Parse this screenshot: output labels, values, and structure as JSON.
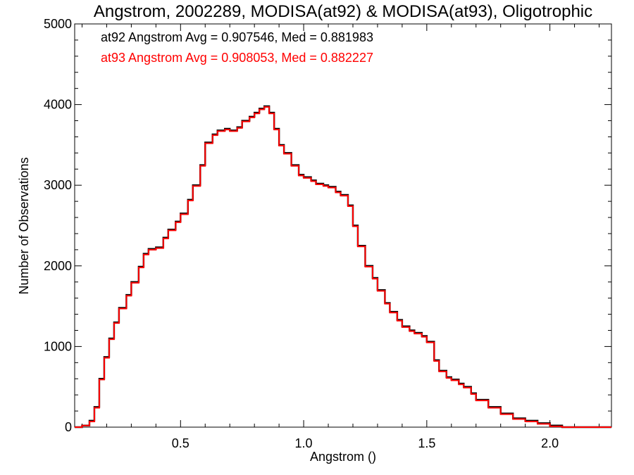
{
  "chart_data": {
    "type": "histogram-step",
    "title": "Angstrom, 2002289, MODISA(at92) & MODISA(at93), Oligotrophic",
    "xlabel": "Angstrom ()",
    "ylabel": "Number of Observations",
    "xlim": [
      0.07,
      2.25
    ],
    "ylim": [
      0,
      5000
    ],
    "x_ticks": [
      "0.5",
      "1.0",
      "1.5",
      "2.0"
    ],
    "x_tick_values": [
      0.5,
      1.0,
      1.5,
      2.0
    ],
    "y_ticks": [
      "0",
      "1000",
      "2000",
      "3000",
      "4000",
      "5000"
    ],
    "y_tick_values": [
      0,
      1000,
      2000,
      3000,
      4000,
      5000
    ],
    "grid": false,
    "annotations": [
      {
        "text": "at92 Angstrom Avg = 0.907546, Med = 0.881983",
        "color": "#000000"
      },
      {
        "text": "at93 Angstrom Avg = 0.908053, Med = 0.882227",
        "color": "#ff0000"
      }
    ],
    "series": [
      {
        "color": "#000000",
        "x": [
          0.07,
          0.1,
          0.13,
          0.15,
          0.17,
          0.19,
          0.21,
          0.23,
          0.25,
          0.28,
          0.3,
          0.33,
          0.35,
          0.37,
          0.4,
          0.43,
          0.45,
          0.48,
          0.5,
          0.53,
          0.55,
          0.58,
          0.6,
          0.63,
          0.65,
          0.68,
          0.7,
          0.73,
          0.75,
          0.78,
          0.8,
          0.82,
          0.84,
          0.86,
          0.88,
          0.9,
          0.92,
          0.95,
          0.98,
          1.0,
          1.03,
          1.05,
          1.08,
          1.1,
          1.13,
          1.15,
          1.18,
          1.2,
          1.22,
          1.25,
          1.28,
          1.3,
          1.33,
          1.35,
          1.38,
          1.4,
          1.43,
          1.45,
          1.48,
          1.5,
          1.53,
          1.55,
          1.58,
          1.6,
          1.63,
          1.65,
          1.68,
          1.7,
          1.75,
          1.8,
          1.85,
          1.9,
          1.95,
          2.0,
          2.05,
          2.1,
          2.15,
          2.2,
          2.25
        ],
        "y": [
          0,
          20,
          80,
          250,
          600,
          870,
          1100,
          1300,
          1480,
          1640,
          1800,
          1990,
          2150,
          2210,
          2230,
          2350,
          2450,
          2550,
          2650,
          2820,
          3000,
          3250,
          3530,
          3630,
          3680,
          3700,
          3680,
          3720,
          3800,
          3850,
          3900,
          3950,
          3980,
          3900,
          3700,
          3500,
          3400,
          3250,
          3130,
          3100,
          3060,
          3020,
          3000,
          2980,
          2920,
          2880,
          2750,
          2500,
          2250,
          2000,
          1850,
          1700,
          1540,
          1430,
          1330,
          1250,
          1200,
          1170,
          1130,
          1060,
          830,
          700,
          620,
          590,
          540,
          500,
          420,
          340,
          250,
          170,
          110,
          80,
          50,
          20,
          0,
          0,
          0,
          0,
          0
        ]
      },
      {
        "color": "#ff0000",
        "x": [
          0.07,
          0.1,
          0.13,
          0.15,
          0.17,
          0.19,
          0.21,
          0.23,
          0.25,
          0.28,
          0.3,
          0.33,
          0.35,
          0.37,
          0.4,
          0.43,
          0.45,
          0.48,
          0.5,
          0.53,
          0.55,
          0.58,
          0.6,
          0.63,
          0.65,
          0.68,
          0.7,
          0.73,
          0.75,
          0.78,
          0.8,
          0.82,
          0.84,
          0.86,
          0.88,
          0.9,
          0.92,
          0.95,
          0.98,
          1.0,
          1.03,
          1.05,
          1.08,
          1.1,
          1.13,
          1.15,
          1.18,
          1.2,
          1.22,
          1.25,
          1.28,
          1.3,
          1.33,
          1.35,
          1.38,
          1.4,
          1.43,
          1.45,
          1.48,
          1.5,
          1.53,
          1.55,
          1.58,
          1.6,
          1.63,
          1.65,
          1.68,
          1.7,
          1.75,
          1.8,
          1.85,
          1.9,
          1.95,
          2.0,
          2.05,
          2.1,
          2.15,
          2.2,
          2.25
        ],
        "y": [
          0,
          20,
          70,
          240,
          590,
          860,
          1090,
          1290,
          1470,
          1630,
          1790,
          1980,
          2140,
          2200,
          2220,
          2340,
          2440,
          2540,
          2640,
          2810,
          2990,
          3240,
          3520,
          3620,
          3670,
          3690,
          3670,
          3710,
          3790,
          3840,
          3890,
          3940,
          3970,
          3890,
          3690,
          3490,
          3390,
          3240,
          3120,
          3090,
          3050,
          3010,
          2990,
          2970,
          2910,
          2870,
          2740,
          2490,
          2240,
          1990,
          1840,
          1690,
          1530,
          1420,
          1320,
          1240,
          1190,
          1160,
          1120,
          1050,
          820,
          690,
          610,
          580,
          530,
          490,
          410,
          330,
          240,
          160,
          100,
          70,
          40,
          10,
          0,
          0,
          0,
          0,
          0
        ]
      }
    ]
  }
}
